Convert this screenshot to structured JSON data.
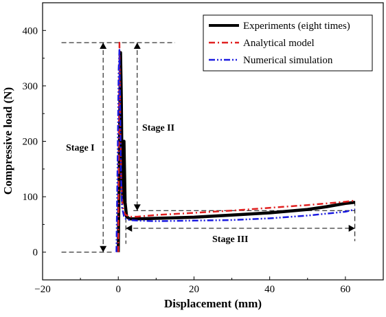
{
  "chart_data": {
    "type": "line",
    "title": "",
    "xlabel": "Displacement (mm)",
    "ylabel": "Compressive load (N)",
    "xlim": [
      -20,
      70
    ],
    "ylim": [
      -50,
      450
    ],
    "xticks": [
      -20,
      0,
      20,
      40,
      60
    ],
    "yticks": [
      0,
      100,
      200,
      300,
      400
    ],
    "x_tick_labels": [
      "−20",
      "0",
      "20",
      "40",
      "60"
    ],
    "y_tick_labels": [
      "0",
      "100",
      "200",
      "300",
      "400"
    ],
    "grid": false,
    "legend_position": "top-right",
    "series": [
      {
        "name": "Experiments (eight times)",
        "color": "#000000",
        "style": "solid",
        "x": [
          0,
          0.2,
          0.4,
          0.6,
          0.8,
          1.0,
          1.2,
          1.5,
          1.8,
          2.2,
          3,
          5,
          10,
          20,
          30,
          40,
          50,
          55,
          60,
          62.5
        ],
        "y": [
          0,
          120,
          250,
          360,
          280,
          140,
          90,
          200,
          90,
          64,
          60,
          60,
          61,
          63,
          67,
          71,
          77,
          82,
          88,
          90
        ]
      },
      {
        "name": "Analytical model",
        "color": "#e02020",
        "style": "dash-dot",
        "x": [
          0,
          0.15,
          0.3,
          0.5,
          0.8,
          1.2,
          1.8,
          3,
          5,
          10,
          20,
          30,
          40,
          50,
          60,
          62.5
        ],
        "y": [
          0,
          200,
          378,
          250,
          120,
          80,
          68,
          64,
          64,
          67,
          71,
          75,
          80,
          85,
          91,
          93
        ]
      },
      {
        "name": "Numerical simulation",
        "color": "#1a1ae0",
        "style": "dash-dot-dot",
        "x": [
          -0.5,
          -0.2,
          0.1,
          0.3,
          0.5,
          0.7,
          1.0,
          1.5,
          2,
          3,
          5,
          10,
          20,
          30,
          40,
          50,
          60,
          62.5
        ],
        "y": [
          0,
          150,
          330,
          365,
          250,
          140,
          80,
          65,
          60,
          58,
          57,
          56,
          57,
          58,
          61,
          66,
          73,
          77
        ]
      }
    ],
    "annotations": {
      "stage_i": "Stage I",
      "stage_ii": "Stage II",
      "stage_iii": "Stage III"
    }
  }
}
